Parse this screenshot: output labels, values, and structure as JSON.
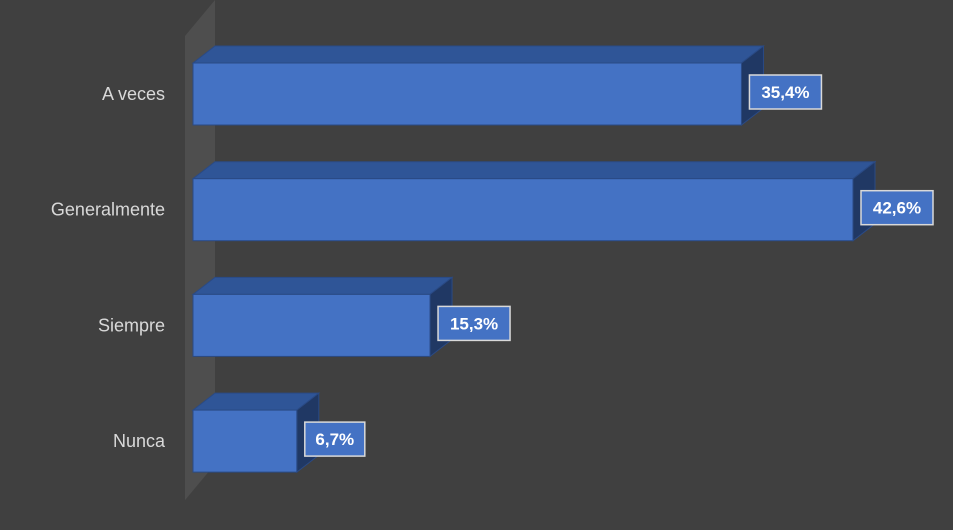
{
  "chart_data": {
    "type": "bar",
    "orientation": "horizontal",
    "style": "3d",
    "categories": [
      "A veces",
      "Generalmente",
      "Siempre",
      "Nunca"
    ],
    "values": [
      35.4,
      42.6,
      15.3,
      6.7
    ],
    "data_labels": [
      "35,4%",
      "42,6%",
      "15,3%",
      "6,7%"
    ],
    "unit": "%",
    "xlim": [
      0,
      42.6
    ],
    "title": "",
    "xlabel": "",
    "ylabel": "",
    "grid": false,
    "legend": "none",
    "colors": {
      "background": "#404040",
      "bar_front": "#4472c4",
      "bar_top": "#2f5597",
      "bar_side": "#203864",
      "bar_edge": "#2a4a85",
      "label_box_fill": "#4472c4",
      "label_box_border": "#d9d9d9",
      "label_text": "#ffffff",
      "category_text": "#d9d9d9",
      "axis_wall": "#595959"
    }
  }
}
